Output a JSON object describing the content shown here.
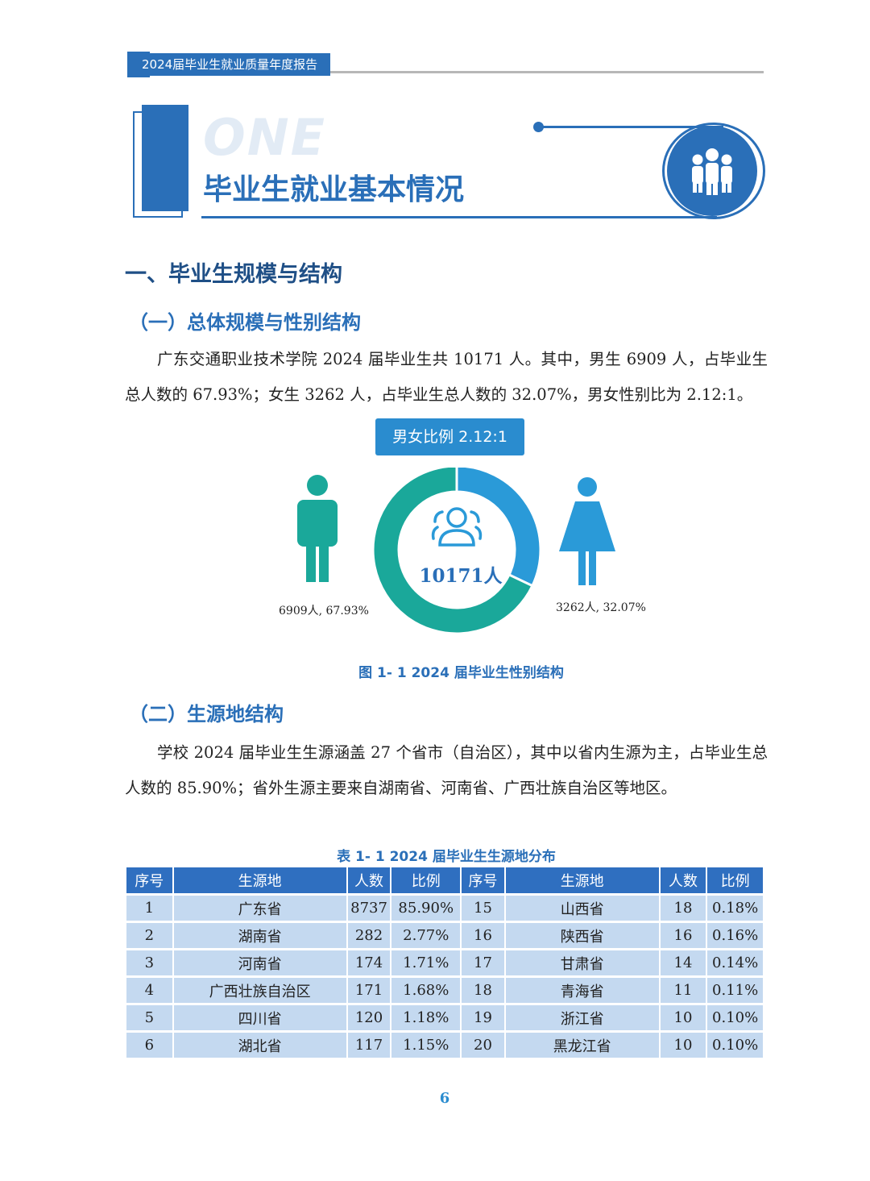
{
  "header": {
    "report_title": "2024届毕业生就业质量年度报告"
  },
  "chapter": {
    "label": "ONE",
    "title": "毕业生就业基本情况"
  },
  "section1": {
    "heading": "一、毕业生规模与结构",
    "sub1": {
      "heading": "（一）总体规模与性别结构",
      "paragraph": "广东交通职业技术学院 2024 届毕业生共 10171 人。其中，男生 6909 人，占毕业生总人数的 67.93%；女生 3262 人，占毕业生总人数的 32.07%，男女性别比为 2.12:1。"
    },
    "sub2": {
      "heading": "（二）生源地结构",
      "paragraph": "学校 2024 届毕业生生源涵盖 27 个省市（自治区），其中以省内生源为主，占毕业生总人数的 85.90%；省外生源主要来自湖南省、河南省、广西壮族自治区等地区。"
    }
  },
  "chart_data": {
    "type": "pie",
    "title": "男女比例 2.12:1",
    "center_label": "10171人",
    "slices": [
      {
        "label": "6909人, 67.93%",
        "value": 67.93,
        "color": "#1aa89a"
      },
      {
        "label": "3262人, 32.07%",
        "value": 32.07,
        "color": "#2a9ad8"
      }
    ],
    "caption": "图 1- 1  2024 届毕业生性别结构",
    "colors": {
      "male": "#1aa89a",
      "female": "#2a9ad8"
    }
  },
  "table": {
    "caption": "表 1- 1   2024 届毕业生生源地分布",
    "headers": [
      "序号",
      "生源地",
      "人数",
      "比例",
      "序号",
      "生源地",
      "人数",
      "比例"
    ],
    "rows": [
      [
        "1",
        "广东省",
        "8737",
        "85.90%",
        "15",
        "山西省",
        "18",
        "0.18%"
      ],
      [
        "2",
        "湖南省",
        "282",
        "2.77%",
        "16",
        "陕西省",
        "16",
        "0.16%"
      ],
      [
        "3",
        "河南省",
        "174",
        "1.71%",
        "17",
        "甘肃省",
        "14",
        "0.14%"
      ],
      [
        "4",
        "广西壮族自治区",
        "171",
        "1.68%",
        "18",
        "青海省",
        "11",
        "0.11%"
      ],
      [
        "5",
        "四川省",
        "120",
        "1.18%",
        "19",
        "浙江省",
        "10",
        "0.10%"
      ],
      [
        "6",
        "湖北省",
        "117",
        "1.15%",
        "20",
        "黑龙江省",
        "10",
        "0.10%"
      ]
    ]
  },
  "page_number": "6"
}
